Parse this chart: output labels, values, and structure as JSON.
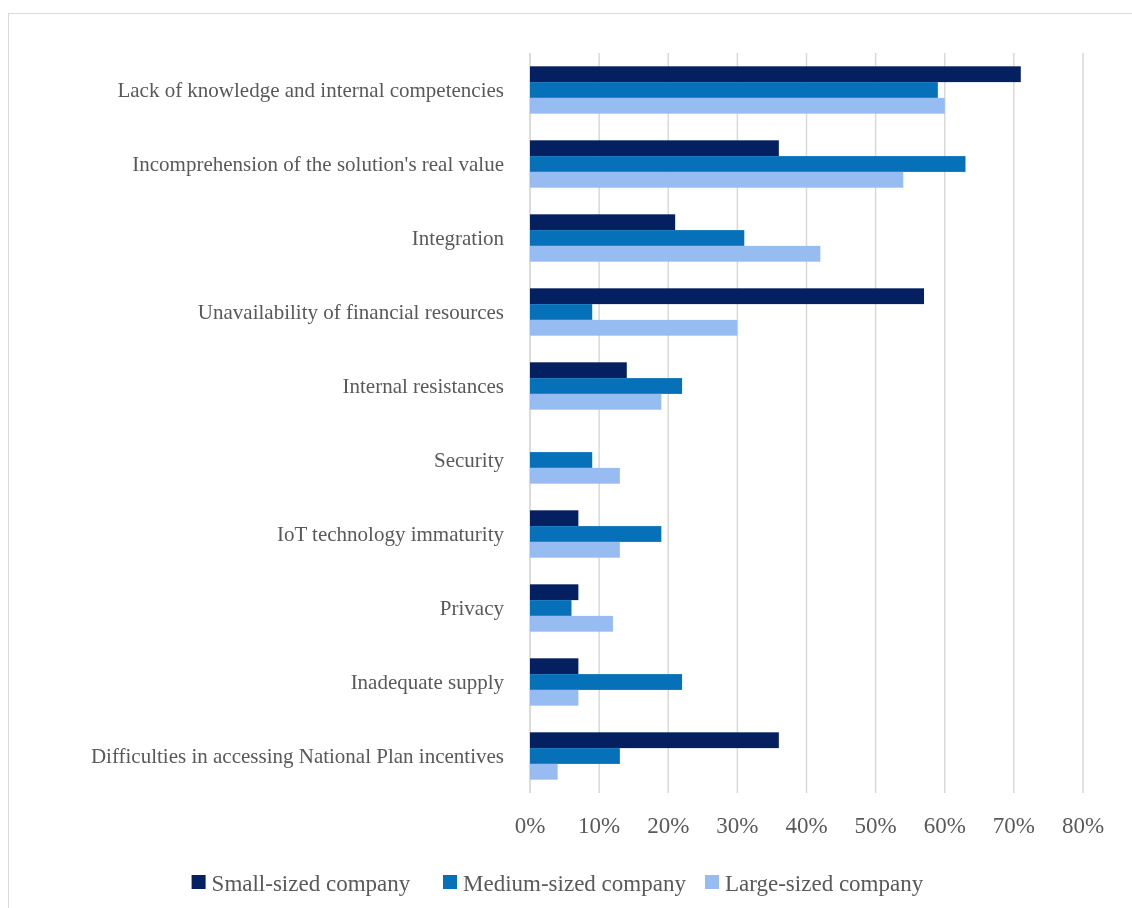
{
  "chart_data": {
    "type": "bar",
    "orientation": "horizontal",
    "categories": [
      "Lack of knowledge and internal competencies",
      "Incomprehension of the solution's real value",
      "Integration",
      "Unavailability of financial resources",
      "Internal resistances",
      "Security",
      "IoT technology immaturity",
      "Privacy",
      "Inadequate supply",
      "Difficulties in accessing National Plan incentives"
    ],
    "series": [
      {
        "name": "Small-sized company",
        "color": "#042060",
        "values": [
          71,
          36,
          21,
          57,
          14,
          0,
          7,
          7,
          7,
          36
        ]
      },
      {
        "name": "Medium-sized company",
        "color": "#0670b8",
        "values": [
          59,
          63,
          31,
          9,
          22,
          9,
          19,
          6,
          22,
          13
        ]
      },
      {
        "name": "Large-sized company",
        "color": "#96bcf2",
        "values": [
          60,
          54,
          42,
          30,
          19,
          13,
          13,
          12,
          7,
          4
        ]
      }
    ],
    "xlim": [
      0,
      80
    ],
    "xticks": [
      {
        "value": 0,
        "label": "0%"
      },
      {
        "value": 10,
        "label": "10%"
      },
      {
        "value": 20,
        "label": "20%"
      },
      {
        "value": 30,
        "label": "30%"
      },
      {
        "value": 40,
        "label": "40%"
      },
      {
        "value": 50,
        "label": "50%"
      },
      {
        "value": 60,
        "label": "60%"
      },
      {
        "value": 70,
        "label": "70%"
      },
      {
        "value": 80,
        "label": "80%"
      }
    ],
    "grid": "x",
    "legend": "bottom"
  }
}
